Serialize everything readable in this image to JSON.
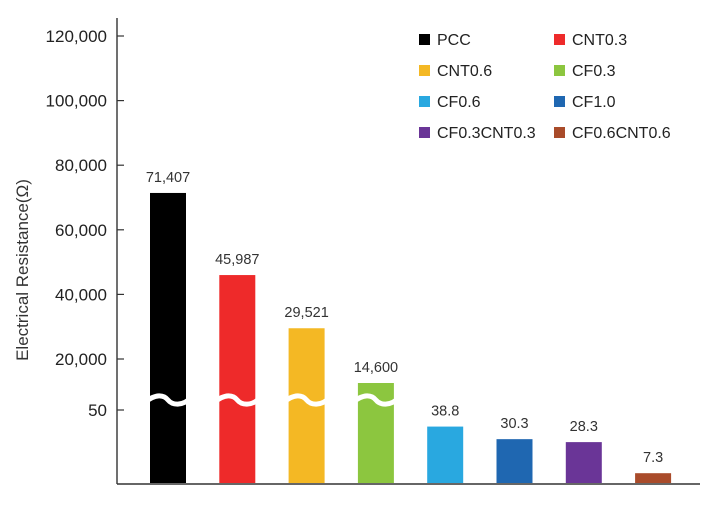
{
  "chart_data": {
    "type": "bar",
    "title": "",
    "xlabel": "",
    "ylabel": "Electrical Resistance(Ω)",
    "axis_break": true,
    "ylim": [
      0,
      120000
    ],
    "y_ticks": [
      {
        "value": 50,
        "label": "50"
      },
      {
        "value": 20000,
        "label": "20,000"
      },
      {
        "value": 40000,
        "label": "40,000"
      },
      {
        "value": 60000,
        "label": "60,000"
      },
      {
        "value": 80000,
        "label": "80,000"
      },
      {
        "value": 100000,
        "label": "100,000"
      },
      {
        "value": 120000,
        "label": "120,000"
      }
    ],
    "legend_position": "top-right",
    "categories": [
      "PCC",
      "CNT0.3",
      "CNT0.6",
      "CF0.3",
      "CF0.6",
      "CF1.0",
      "CF0.3CNT0.3",
      "CF0.6CNT0.6"
    ],
    "values": [
      71407,
      45987,
      29521,
      14600,
      38.8,
      30.3,
      28.3,
      7.3
    ],
    "value_labels": [
      "71,407",
      "45,987",
      "29,521",
      "14,600",
      "38.8",
      "30.3",
      "28.3",
      "7.3"
    ],
    "colors": [
      "#000000",
      "#ee2a2a",
      "#f4b824",
      "#8cc63f",
      "#29a8e0",
      "#1f67b1",
      "#6a3597",
      "#a94b2a"
    ],
    "grid": false
  }
}
